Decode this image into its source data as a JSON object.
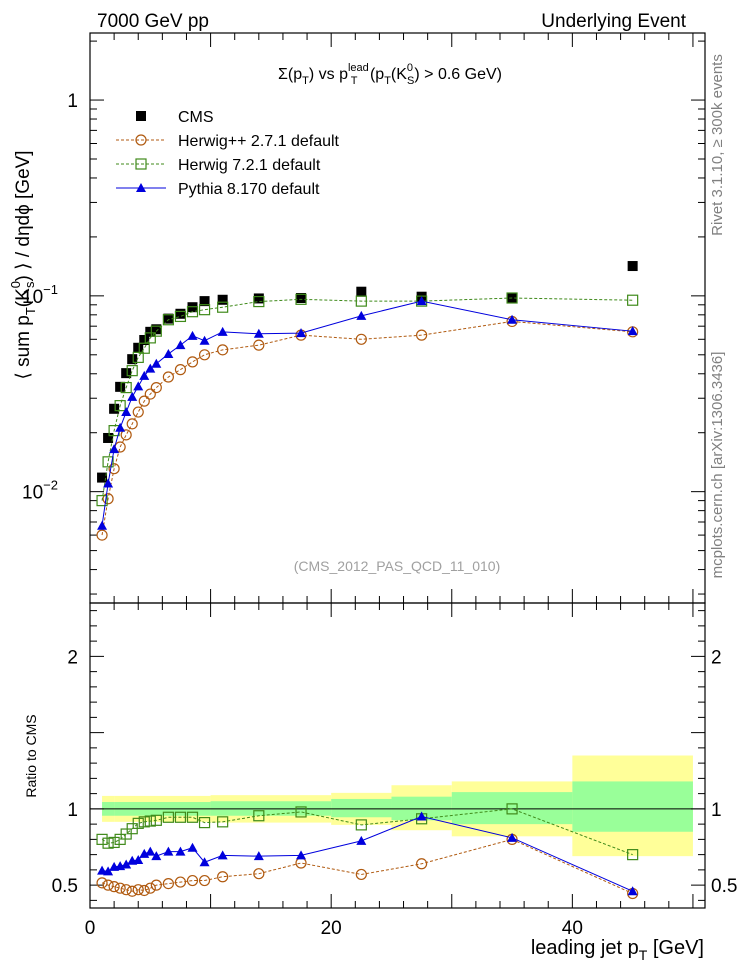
{
  "header": {
    "left": "7000 GeV pp",
    "right": "Underlying Event"
  },
  "side_labels": {
    "rivet": "Rivet 3.1.10, ≥ 300k events",
    "source": "mcplots.cern.ch [arXiv:1306.3436]"
  },
  "plot_title": {
    "base": "Σ(p",
    "sub1": "T",
    "mid1": ") vs p",
    "sup2": "lead",
    "sub2": "T",
    "mid2": " (p",
    "sub3": "T",
    "mid3": "(K",
    "sup4": "0",
    "sub4": "S",
    "end": ") > 0.6 GeV)"
  },
  "analysis_id": "(CMS_2012_PAS_QCD_11_010)",
  "ylabel_main": {
    "a": "⟨ sum p",
    "sub1": "T",
    "b": "(K",
    "sup2": "0",
    "sub2": "s",
    "c": ") ⟩ / dηdϕ [GeV]"
  },
  "ylabel_ratio": "Ratio to CMS",
  "xlabel": {
    "a": "leading jet p",
    "sub": "T",
    "b": " [GeV]"
  },
  "ticks": {
    "main_y": [
      {
        "base": "10",
        "exp": "−2",
        "value": 0.01
      },
      {
        "base": "10",
        "exp": "−1",
        "value": 0.1
      },
      {
        "base": "1",
        "exp": "",
        "value": 1
      }
    ],
    "ratio_y": [
      "0.5",
      "1",
      "2"
    ],
    "x": [
      "0",
      "20",
      "40"
    ]
  },
  "chart_data": {
    "type": "line",
    "x_range": [
      0,
      51
    ],
    "main_ylim": [
      0.0027,
      2.2
    ],
    "main_yscale": "log",
    "ratio_ylim": [
      0.35,
      2.35
    ],
    "legend_position": "top-left",
    "series": [
      {
        "name": "CMS",
        "style": "filled-square",
        "color": "#000000",
        "x": [
          1,
          1.5,
          2,
          2.5,
          3,
          3.5,
          4,
          4.5,
          5,
          5.5,
          6.5,
          7.5,
          8.5,
          9.5,
          11,
          14,
          17.5,
          22.5,
          27.5,
          35,
          45
        ],
        "y": [
          0.0118,
          0.0188,
          0.0265,
          0.0343,
          0.0403,
          0.0475,
          0.0543,
          0.0595,
          0.0655,
          0.0675,
          0.0765,
          0.081,
          0.0875,
          0.094,
          0.0955,
          0.097,
          0.0975,
          0.105,
          0.099,
          0.0975,
          0.142
        ]
      },
      {
        "name": "Herwig++ 2.7.1 default",
        "style": "open-circle-dashed",
        "color": "#b05a10",
        "x": [
          1,
          1.5,
          2,
          2.5,
          3,
          3.5,
          4,
          4.5,
          5,
          5.5,
          6.5,
          7.5,
          8.5,
          9.5,
          11,
          14,
          17.5,
          22.5,
          27.5,
          35,
          45
        ],
        "y": [
          0.006,
          0.0092,
          0.0131,
          0.0169,
          0.0195,
          0.0222,
          0.0255,
          0.029,
          0.0315,
          0.034,
          0.0385,
          0.042,
          0.046,
          0.05,
          0.053,
          0.056,
          0.063,
          0.06,
          0.063,
          0.074,
          0.0655
        ],
        "ratio": [
          0.515,
          0.5,
          0.49,
          0.48,
          0.47,
          0.46,
          0.47,
          0.465,
          0.48,
          0.5,
          0.51,
          0.52,
          0.53,
          0.53,
          0.555,
          0.575,
          0.645,
          0.57,
          0.64,
          0.8,
          0.445
        ]
      },
      {
        "name": "Herwig 7.2.1 default",
        "style": "open-square-dashed",
        "color": "#3f8a1a",
        "x": [
          1,
          1.5,
          2,
          2.5,
          3,
          3.5,
          4,
          4.5,
          5,
          5.5,
          6.5,
          7.5,
          8.5,
          9.5,
          11,
          14,
          17.5,
          22.5,
          27.5,
          35,
          45
        ],
        "y": [
          0.009,
          0.0142,
          0.0205,
          0.0275,
          0.034,
          0.0415,
          0.0485,
          0.054,
          0.061,
          0.066,
          0.0755,
          0.0785,
          0.083,
          0.085,
          0.0875,
          0.0935,
          0.096,
          0.094,
          0.094,
          0.0975,
          0.095
        ],
        "ratio": [
          0.8,
          0.775,
          0.78,
          0.8,
          0.835,
          0.87,
          0.905,
          0.915,
          0.92,
          0.925,
          0.945,
          0.945,
          0.945,
          0.91,
          0.915,
          0.955,
          0.98,
          0.895,
          0.935,
          1.0,
          0.7
        ]
      },
      {
        "name": "Pythia 8.170 default",
        "style": "filled-triangle-solid",
        "color": "#0000dd",
        "x": [
          1,
          1.5,
          2,
          2.5,
          3,
          3.5,
          4,
          4.5,
          5,
          5.5,
          6.5,
          7.5,
          8.5,
          9.5,
          11,
          14,
          17.5,
          22.5,
          27.5,
          35,
          45
        ],
        "y": [
          0.0067,
          0.011,
          0.0165,
          0.0212,
          0.0255,
          0.0305,
          0.0345,
          0.039,
          0.0425,
          0.045,
          0.0505,
          0.056,
          0.0625,
          0.059,
          0.0655,
          0.064,
          0.0645,
          0.079,
          0.094,
          0.0755,
          0.066
        ],
        "ratio": [
          0.595,
          0.59,
          0.62,
          0.625,
          0.635,
          0.66,
          0.665,
          0.705,
          0.72,
          0.69,
          0.72,
          0.72,
          0.745,
          0.65,
          0.695,
          0.69,
          0.695,
          0.79,
          0.95,
          0.81,
          0.46
        ]
      }
    ],
    "ratio_bands": [
      {
        "x0": 1,
        "x1": 2,
        "inner": [
          0.955,
          1.045
        ],
        "outer": [
          0.915,
          1.085
        ]
      },
      {
        "x0": 2,
        "x1": 10,
        "inner": [
          0.955,
          1.045
        ],
        "outer": [
          0.915,
          1.085
        ]
      },
      {
        "x0": 10,
        "x1": 20,
        "inner": [
          0.955,
          1.05
        ],
        "outer": [
          0.91,
          1.09
        ]
      },
      {
        "x0": 20,
        "x1": 25,
        "inner": [
          0.945,
          1.065
        ],
        "outer": [
          0.895,
          1.105
        ]
      },
      {
        "x0": 25,
        "x1": 30,
        "inner": [
          0.925,
          1.08
        ],
        "outer": [
          0.86,
          1.155
        ]
      },
      {
        "x0": 30,
        "x1": 40,
        "inner": [
          0.9,
          1.11
        ],
        "outer": [
          0.82,
          1.18
        ]
      },
      {
        "x0": 40,
        "x1": 50,
        "inner": [
          0.85,
          1.18
        ],
        "outer": [
          0.69,
          1.35
        ]
      }
    ]
  }
}
